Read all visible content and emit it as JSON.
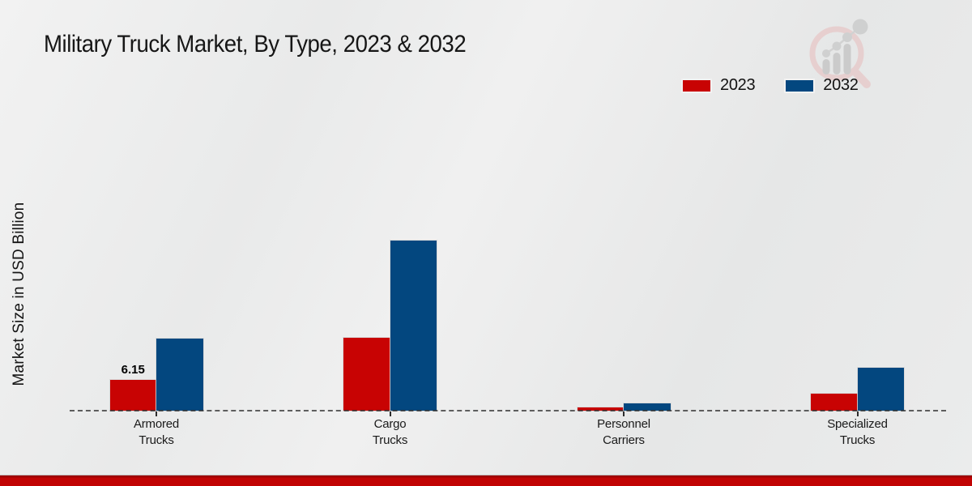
{
  "title": "Military Truck Market, By Type, 2023 & 2032",
  "ylabel": "Market Size in USD Billion",
  "watermark_icon": "magnifier-bar-chart-logo",
  "colors": {
    "series_2023": "#c80303",
    "series_2032": "#03477f",
    "background": "#eaeaea",
    "footer_band": "#c10404",
    "baseline": "#2d2d2d"
  },
  "legend": {
    "position": "top-right",
    "items": [
      {
        "label": "2023",
        "color": "#c80303"
      },
      {
        "label": "2032",
        "color": "#03477f"
      }
    ]
  },
  "annotation": {
    "text": "6.15",
    "series": "2023",
    "category": "Armored Trucks"
  },
  "chart_data": {
    "type": "bar",
    "categories": [
      "Armored Trucks",
      "Cargo Trucks",
      "Personnel Carriers",
      "Specialized Trucks"
    ],
    "category_label_lines": [
      [
        "Armored",
        "Trucks"
      ],
      [
        "Cargo",
        "Trucks"
      ],
      [
        "Personnel",
        "Carriers"
      ],
      [
        "Specialized",
        "Trucks"
      ]
    ],
    "series": [
      {
        "name": "2023",
        "color": "#c80303",
        "values": [
          6.15,
          14.6,
          0.6,
          3.4
        ]
      },
      {
        "name": "2032",
        "color": "#03477f",
        "values": [
          14.4,
          34.0,
          1.4,
          8.5
        ]
      }
    ],
    "title": "Military Truck Market, By Type, 2023 & 2032",
    "xlabel": "",
    "ylabel": "Market Size in USD Billion",
    "ylim": [
      0,
      40
    ],
    "grid": false,
    "axis_style": "dashed-baseline-only",
    "data_labels": [
      {
        "series": "2023",
        "category_index": 0,
        "text": "6.15"
      }
    ],
    "legend_position": "upper right"
  }
}
